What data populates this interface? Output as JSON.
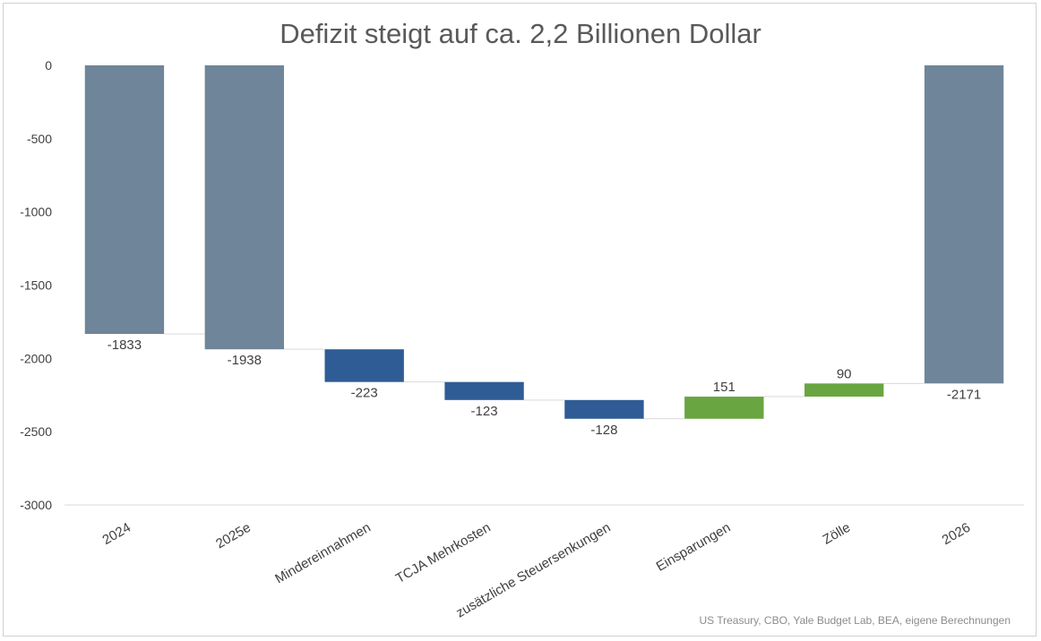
{
  "chart_data": {
    "type": "bar",
    "subtype": "waterfall",
    "title": "Defizit steigt auf ca. 2,2 Billionen Dollar",
    "source": "US Treasury, CBO, Yale Budget Lab, BEA, eigene Berechnungen",
    "xlabel": "",
    "ylabel": "",
    "ylim": [
      -3000,
      0
    ],
    "yticks": [
      0,
      -500,
      -1000,
      -1500,
      -2000,
      -2500,
      -3000
    ],
    "grid": false,
    "legend": "none",
    "categories": [
      "2024",
      "2025e",
      "Mindereinnahmen",
      "TCJA Mehrkosten",
      "zusätzliche Steuersenkungen",
      "Einsparungen",
      "Zölle",
      "2026"
    ],
    "bars": [
      {
        "category": "2024",
        "kind": "total",
        "value": -1833,
        "label": "-1833"
      },
      {
        "category": "2025e",
        "kind": "total",
        "value": -1938,
        "label": "-1938"
      },
      {
        "category": "Mindereinnahmen",
        "kind": "decrease",
        "value": -223,
        "label": "-223"
      },
      {
        "category": "TCJA Mehrkosten",
        "kind": "decrease",
        "value": -123,
        "label": "-123"
      },
      {
        "category": "zusätzliche Steuersenkungen",
        "kind": "decrease",
        "value": -128,
        "label": "-128"
      },
      {
        "category": "Einsparungen",
        "kind": "increase",
        "value": 151,
        "label": "151"
      },
      {
        "category": "Zölle",
        "kind": "increase",
        "value": 90,
        "label": "90"
      },
      {
        "category": "2026",
        "kind": "total",
        "value": -2171,
        "label": "-2171"
      }
    ],
    "colors": {
      "total": "#6f8599",
      "decrease": "#2f5c95",
      "increase": "#69a541",
      "axis": "#d9d9d9",
      "text": "#404040"
    }
  }
}
